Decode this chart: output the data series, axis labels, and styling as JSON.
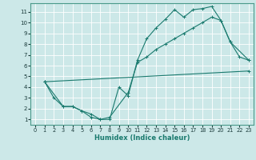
{
  "xlabel": "Humidex (Indice chaleur)",
  "bg_color": "#cce8e8",
  "grid_color": "#ffffff",
  "line_color": "#1a7a6e",
  "xlim": [
    -0.5,
    23.5
  ],
  "ylim": [
    0.5,
    11.8
  ],
  "xticks": [
    0,
    1,
    2,
    3,
    4,
    5,
    6,
    7,
    8,
    9,
    10,
    11,
    12,
    13,
    14,
    15,
    16,
    17,
    18,
    19,
    20,
    21,
    22,
    23
  ],
  "yticks": [
    1,
    2,
    3,
    4,
    5,
    6,
    7,
    8,
    9,
    10,
    11
  ],
  "line1_x": [
    1,
    2,
    3,
    4,
    5,
    6,
    7,
    8,
    9,
    10,
    11,
    12,
    13,
    14,
    15,
    16,
    17,
    18,
    19,
    20,
    21,
    22,
    23
  ],
  "line1_y": [
    4.5,
    3.0,
    2.2,
    2.2,
    1.8,
    1.2,
    1.0,
    1.0,
    4.0,
    3.2,
    6.5,
    8.5,
    9.5,
    10.3,
    11.2,
    10.5,
    11.2,
    11.3,
    11.5,
    10.2,
    8.2,
    6.8,
    6.5
  ],
  "line2_x": [
    1,
    3,
    4,
    5,
    6,
    7,
    8,
    10,
    11,
    12,
    13,
    14,
    15,
    16,
    17,
    18,
    19,
    20,
    21,
    23
  ],
  "line2_y": [
    4.5,
    2.2,
    2.2,
    1.8,
    1.5,
    1.0,
    1.2,
    3.5,
    6.3,
    6.8,
    7.5,
    8.0,
    8.5,
    9.0,
    9.5,
    10.0,
    10.5,
    10.2,
    8.2,
    6.5
  ],
  "line3_x": [
    1,
    23
  ],
  "line3_y": [
    4.5,
    5.5
  ]
}
